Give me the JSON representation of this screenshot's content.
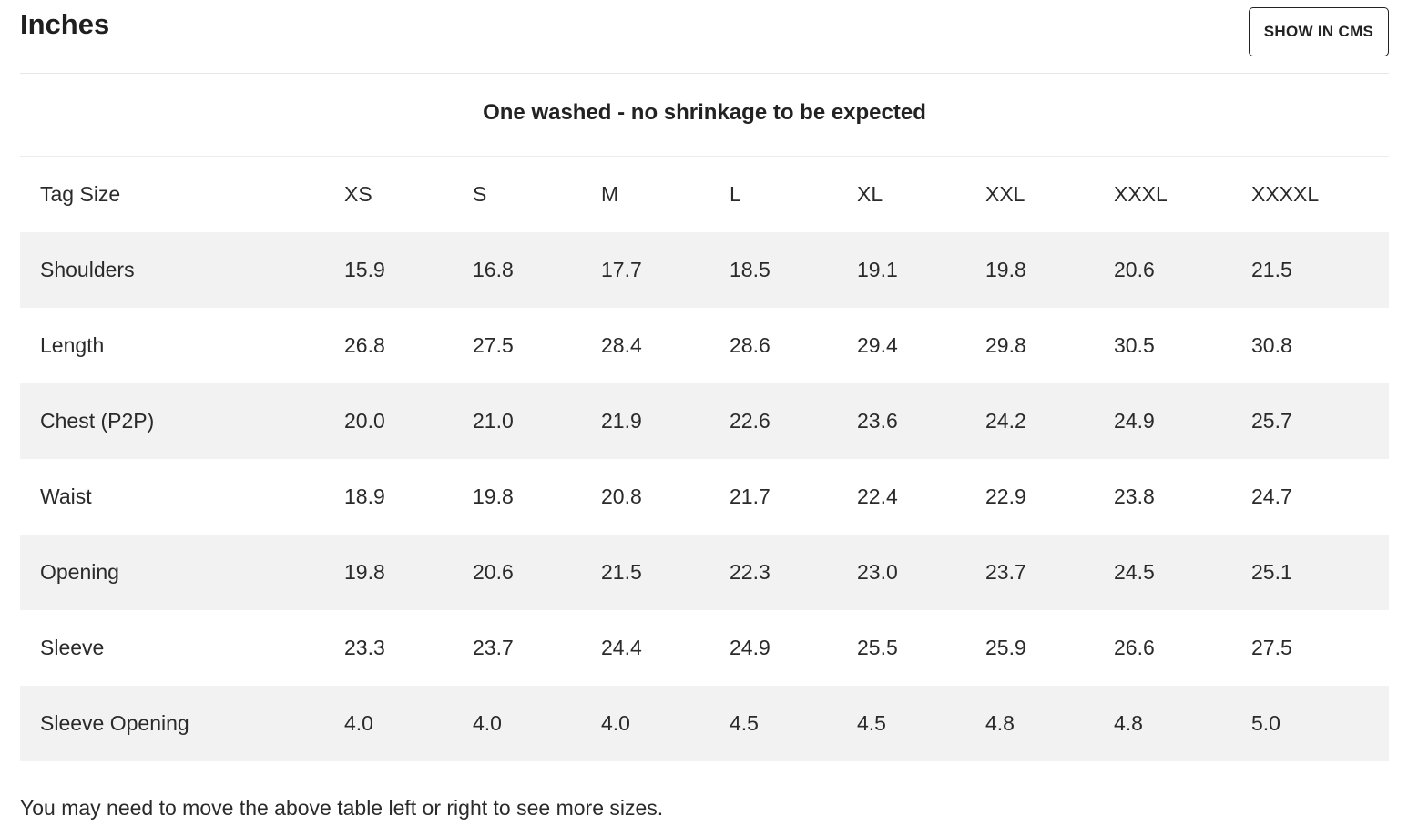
{
  "section": {
    "title": "Inches",
    "cms_button_label": "SHOW IN CMS",
    "subtitle": "One washed - no shrinkage to be expected"
  },
  "table": {
    "columns": [
      "Tag Size",
      "XS",
      "S",
      "M",
      "L",
      "XL",
      "XXL",
      "XXXL",
      "XXXXL"
    ],
    "rows": [
      {
        "label": "Shoulders",
        "values": [
          "15.9",
          "16.8",
          "17.7",
          "18.5",
          "19.1",
          "19.8",
          "20.6",
          "21.5"
        ]
      },
      {
        "label": "Length",
        "values": [
          "26.8",
          "27.5",
          "28.4",
          "28.6",
          "29.4",
          "29.8",
          "30.5",
          "30.8"
        ]
      },
      {
        "label": "Chest (P2P)",
        "values": [
          "20.0",
          "21.0",
          "21.9",
          "22.6",
          "23.6",
          "24.2",
          "24.9",
          "25.7"
        ]
      },
      {
        "label": "Waist",
        "values": [
          "18.9",
          "19.8",
          "20.8",
          "21.7",
          "22.4",
          "22.9",
          "23.8",
          "24.7"
        ]
      },
      {
        "label": "Opening",
        "values": [
          "19.8",
          "20.6",
          "21.5",
          "22.3",
          "23.0",
          "23.7",
          "24.5",
          "25.1"
        ]
      },
      {
        "label": "Sleeve",
        "values": [
          "23.3",
          "23.7",
          "24.4",
          "24.9",
          "25.5",
          "25.9",
          "26.6",
          "27.5"
        ]
      },
      {
        "label": "Sleeve Opening",
        "values": [
          "4.0",
          "4.0",
          "4.0",
          "4.5",
          "4.5",
          "4.8",
          "4.8",
          "5.0"
        ]
      }
    ]
  },
  "footer": {
    "note": "You may need to move the above table left or right to see more sizes."
  }
}
